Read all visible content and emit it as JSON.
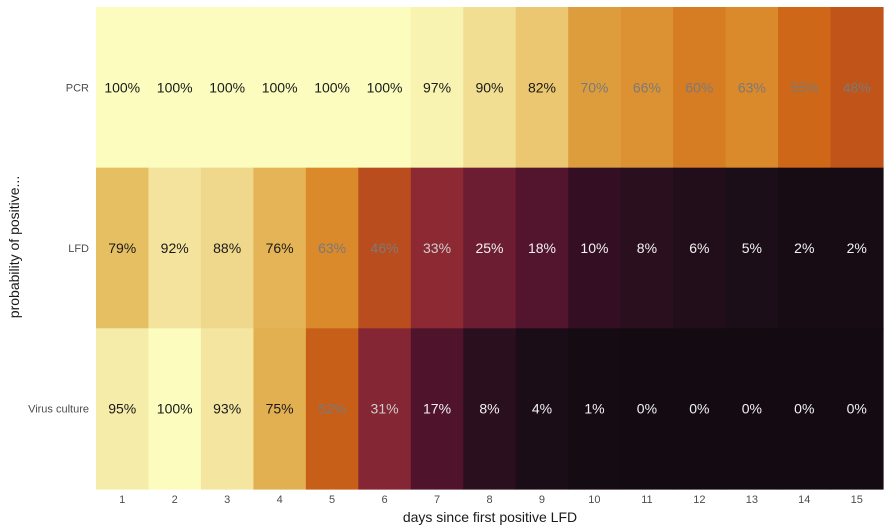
{
  "chart_data": {
    "type": "heatmap",
    "title": "",
    "xlabel": "days since first positive LFD",
    "ylabel": "probability of positive...",
    "x_categories": [
      "1",
      "2",
      "3",
      "4",
      "5",
      "6",
      "7",
      "8",
      "9",
      "10",
      "11",
      "12",
      "13",
      "14",
      "15"
    ],
    "y_categories": [
      "PCR",
      "LFD",
      "Virus culture"
    ],
    "unit": "%",
    "colorscale": "inferno (dark = 0%, light yellow = 100%)",
    "series": [
      {
        "name": "PCR",
        "values": [
          100,
          100,
          100,
          100,
          100,
          100,
          97,
          90,
          82,
          70,
          66,
          60,
          63,
          55,
          48
        ]
      },
      {
        "name": "LFD",
        "values": [
          79,
          92,
          88,
          76,
          63,
          46,
          33,
          25,
          18,
          10,
          8,
          6,
          5,
          2,
          2
        ]
      },
      {
        "name": "Virus culture",
        "values": [
          95,
          100,
          93,
          75,
          52,
          31,
          17,
          8,
          4,
          1,
          0,
          0,
          0,
          0,
          0
        ]
      }
    ],
    "value_labels": [
      [
        "100%",
        "100%",
        "100%",
        "100%",
        "100%",
        "100%",
        "97%",
        "90%",
        "82%",
        "70%",
        "66%",
        "60%",
        "63%",
        "55%",
        "48%"
      ],
      [
        "79%",
        "92%",
        "88%",
        "76%",
        "63%",
        "46%",
        "33%",
        "25%",
        "18%",
        "10%",
        "8%",
        "6%",
        "5%",
        "2%",
        "2%"
      ],
      [
        "95%",
        "100%",
        "93%",
        "75%",
        "52%",
        "31%",
        "17%",
        "8%",
        "4%",
        "1%",
        "0%",
        "0%",
        "0%",
        "0%",
        "0%"
      ]
    ],
    "zlim": [
      0,
      100
    ],
    "grid": false,
    "legend": "none"
  }
}
